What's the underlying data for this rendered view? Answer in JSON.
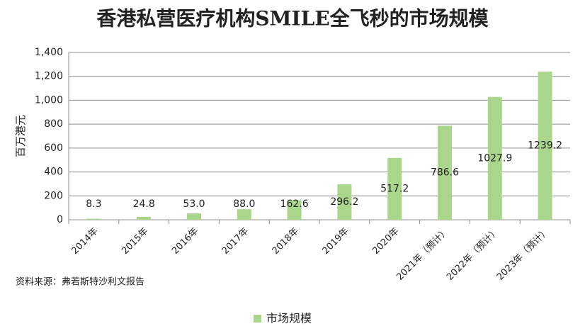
{
  "chart_data": {
    "type": "bar",
    "title": "香港私营医疗机构SMILE全飞秒的市场规模",
    "ylabel": "百万港元",
    "source": "资料来源：弗若斯特沙利文报告",
    "categories": [
      "2014年",
      "2015年",
      "2016年",
      "2017年",
      "2018年",
      "2019年",
      "2020年",
      "2021年（预计）",
      "2022年（预计）",
      "2023年（预计）"
    ],
    "series": [
      {
        "name": "市场规模",
        "color": "#a9d68a",
        "values": [
          8.3,
          24.8,
          53.0,
          88.0,
          162.6,
          296.2,
          517.2,
          786.6,
          1027.9,
          1239.2
        ],
        "value_labels": [
          "8.3",
          "24.8",
          "53.0",
          "88.0",
          "162.6",
          "296.2",
          "517.2",
          "786.6",
          "1027.9",
          "1239.2"
        ]
      }
    ],
    "ylim": [
      0,
      1400
    ],
    "yticks": [
      0,
      200,
      400,
      600,
      800,
      {
        "value": 1000,
        "label": "1,000"
      },
      {
        "value": 1200,
        "label": "1,200"
      },
      {
        "value": 1400,
        "label": "1,400"
      }
    ],
    "grid": true,
    "legend": "bottom"
  }
}
